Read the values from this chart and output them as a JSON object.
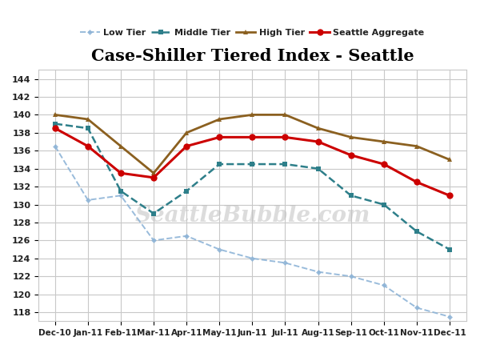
{
  "title": "Case-Shiller Tiered Index - Seattle",
  "months": [
    "Dec-10",
    "Jan-11",
    "Feb-11",
    "Mar-11",
    "Apr-11",
    "May-11",
    "Jun-11",
    "Jul-11",
    "Aug-11",
    "Sep-11",
    "Oct-11",
    "Nov-11",
    "Dec-11"
  ],
  "low_tier": [
    136.5,
    130.5,
    131.0,
    126.0,
    126.5,
    125.0,
    124.0,
    123.5,
    122.5,
    122.0,
    121.0,
    118.5,
    117.5
  ],
  "middle_tier": [
    139.0,
    138.5,
    131.5,
    129.0,
    131.5,
    134.5,
    134.5,
    134.5,
    134.0,
    131.0,
    130.0,
    127.0,
    125.0
  ],
  "high_tier": [
    140.0,
    139.5,
    136.5,
    133.5,
    138.0,
    139.5,
    140.0,
    140.0,
    138.5,
    137.5,
    137.0,
    136.5,
    135.0
  ],
  "seattle_agg": [
    138.5,
    136.5,
    133.5,
    133.0,
    136.5,
    137.5,
    137.5,
    137.5,
    137.0,
    135.5,
    134.5,
    132.5,
    131.0
  ],
  "low_color": "#8eb4d7",
  "middle_color": "#2e7f8a",
  "high_color": "#8b6020",
  "agg_color": "#cc0000",
  "ylim": [
    117,
    145
  ],
  "yticks": [
    118,
    120,
    122,
    124,
    126,
    128,
    130,
    132,
    134,
    136,
    138,
    140,
    142,
    144
  ],
  "background_color": "#ffffff",
  "grid_color": "#c8c8c8",
  "watermark": "SeattleBubble.com"
}
